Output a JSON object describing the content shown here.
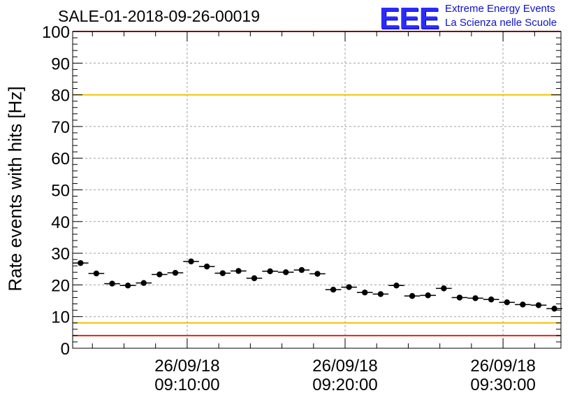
{
  "header": {
    "title": "SALE-01-2018-09-26-00019",
    "logo_text": "EEE",
    "logo_line1": "Extreme Energy Events",
    "logo_line2": "La Scienza nelle Scuole"
  },
  "chart_data": {
    "type": "scatter",
    "title": "SALE-01-2018-09-26-00019",
    "ylabel": "Rate events with hits [Hz]",
    "xlabel": "",
    "ylim": [
      0,
      100
    ],
    "xlim": [
      "2018-09-26 09:02:45",
      "2018-09-26 09:33:40"
    ],
    "y_ticks": [
      0,
      10,
      20,
      30,
      40,
      50,
      60,
      70,
      80,
      90,
      100
    ],
    "x_ticks": [
      {
        "date": "26/09/18",
        "time": "09:10:00"
      },
      {
        "date": "26/09/18",
        "time": "09:20:00"
      },
      {
        "date": "26/09/18",
        "time": "09:30:00"
      }
    ],
    "grid": true,
    "reference_lines": [
      {
        "y": 4,
        "color": "#e8201c"
      },
      {
        "y": 8,
        "color": "#f0c000"
      },
      {
        "y": 80,
        "color": "#f0c000"
      },
      {
        "y": 100,
        "color": "#e8201c"
      }
    ],
    "series": [
      {
        "x": [
          "09:03:15",
          "09:04:15",
          "09:05:15",
          "09:06:15",
          "09:07:15",
          "09:08:15",
          "09:09:15",
          "09:10:15",
          "09:11:15",
          "09:12:15",
          "09:13:15",
          "09:14:15",
          "09:15:15",
          "09:16:15",
          "09:17:15",
          "09:18:15",
          "09:19:15",
          "09:20:15",
          "09:21:15",
          "09:22:15",
          "09:23:15",
          "09:24:15",
          "09:25:15",
          "09:26:15",
          "09:27:15",
          "09:28:15",
          "09:29:15",
          "09:30:15",
          "09:31:15",
          "09:32:15",
          "09:33:15"
        ],
        "values": [
          26.9,
          23.6,
          20.4,
          19.8,
          20.6,
          23.3,
          23.8,
          27.4,
          25.8,
          23.7,
          24.4,
          22.1,
          24.3,
          24.0,
          24.7,
          23.5,
          18.5,
          19.3,
          17.6,
          17.1,
          19.8,
          16.5,
          16.7,
          18.9,
          16.0,
          15.8,
          15.4,
          14.5,
          13.8,
          13.6,
          12.5
        ]
      }
    ],
    "colors": {
      "marker": "#000000",
      "grid": "#a0a0a0",
      "red_line": "#e8201c",
      "yellow_line": "#f0c000"
    }
  }
}
